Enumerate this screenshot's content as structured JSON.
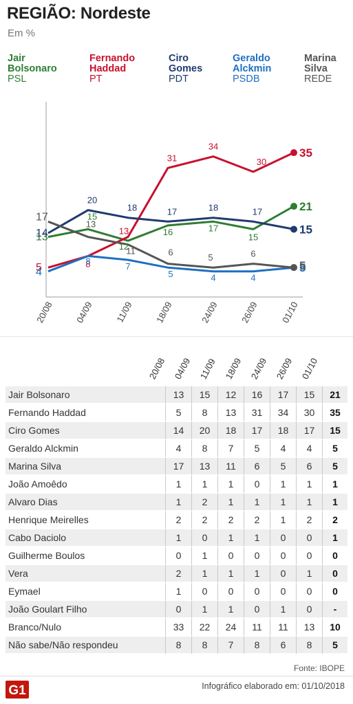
{
  "header": {
    "title": "REGIÃO: Nordeste",
    "subtitle": "Em %"
  },
  "legend": [
    {
      "name": "Jair Bolsonaro",
      "party": "PSL",
      "color": "#2e7d32"
    },
    {
      "name": "Fernando Haddad",
      "party": "PT",
      "color": "#c8102e"
    },
    {
      "name": "Ciro Gomes",
      "party": "PDT",
      "color": "#1f3a6e"
    },
    {
      "name": "Geraldo Alckmin",
      "party": "PSDB",
      "color": "#1f6fc0"
    },
    {
      "name": "Marina Silva",
      "party": "REDE",
      "color": "#555555"
    }
  ],
  "chart_data": {
    "type": "line",
    "x": [
      "20/08",
      "04/09",
      "11/09",
      "18/09",
      "24/09",
      "26/09",
      "01/10"
    ],
    "ylim": [
      0,
      45
    ],
    "grid": false,
    "series": [
      {
        "name": "Jair Bolsonaro",
        "color": "#2e7d32",
        "values": [
          13,
          15,
          12,
          16,
          17,
          15,
          21
        ]
      },
      {
        "name": "Fernando Haddad",
        "color": "#c8102e",
        "values": [
          5,
          8,
          13,
          31,
          34,
          30,
          35
        ]
      },
      {
        "name": "Ciro Gomes",
        "color": "#1f3a6e",
        "values": [
          14,
          20,
          18,
          17,
          18,
          17,
          15
        ]
      },
      {
        "name": "Geraldo Alckmin",
        "color": "#1f6fc0",
        "values": [
          4,
          8,
          7,
          5,
          4,
          4,
          5
        ]
      },
      {
        "name": "Marina Silva",
        "color": "#555555",
        "values": [
          17,
          13,
          11,
          6,
          5,
          6,
          5
        ]
      }
    ]
  },
  "table": {
    "columns": [
      "20/08",
      "04/09",
      "11/09",
      "18/09",
      "24/09",
      "26/09",
      "01/10"
    ],
    "rows": [
      {
        "name": "Jair Bolsonaro",
        "values": [
          "13",
          "15",
          "12",
          "16",
          "17",
          "15",
          "21"
        ]
      },
      {
        "name": "Fernando Haddad",
        "values": [
          "5",
          "8",
          "13",
          "31",
          "34",
          "30",
          "35"
        ]
      },
      {
        "name": "Ciro Gomes",
        "values": [
          "14",
          "20",
          "18",
          "17",
          "18",
          "17",
          "15"
        ]
      },
      {
        "name": "Geraldo Alckmin",
        "values": [
          "4",
          "8",
          "7",
          "5",
          "4",
          "4",
          "5"
        ]
      },
      {
        "name": "Marina Silva",
        "values": [
          "17",
          "13",
          "11",
          "6",
          "5",
          "6",
          "5"
        ]
      },
      {
        "name": "João Amoêdo",
        "values": [
          "1",
          "1",
          "1",
          "0",
          "1",
          "1",
          "1"
        ]
      },
      {
        "name": "Alvaro Dias",
        "values": [
          "1",
          "2",
          "1",
          "1",
          "1",
          "1",
          "1"
        ]
      },
      {
        "name": "Henrique Meirelles",
        "values": [
          "2",
          "2",
          "2",
          "2",
          "1",
          "2",
          "2"
        ]
      },
      {
        "name": "Cabo Daciolo",
        "values": [
          "1",
          "0",
          "1",
          "1",
          "0",
          "0",
          "1"
        ]
      },
      {
        "name": "Guilherme Boulos",
        "values": [
          "0",
          "1",
          "0",
          "0",
          "0",
          "0",
          "0"
        ]
      },
      {
        "name": "Vera",
        "values": [
          "2",
          "1",
          "1",
          "1",
          "0",
          "1",
          "0"
        ]
      },
      {
        "name": "Eymael",
        "values": [
          "1",
          "0",
          "0",
          "0",
          "0",
          "0",
          "0"
        ]
      },
      {
        "name": "João Goulart Filho",
        "values": [
          "0",
          "1",
          "1",
          "0",
          "1",
          "0",
          "-"
        ]
      },
      {
        "name": "Branco/Nulo",
        "values": [
          "33",
          "22",
          "24",
          "11",
          "11",
          "13",
          "10"
        ]
      },
      {
        "name": "Não sabe/Não respondeu",
        "values": [
          "8",
          "8",
          "7",
          "8",
          "6",
          "8",
          "5"
        ]
      }
    ]
  },
  "footer": {
    "source": "Fonte: IBOPE",
    "credit": "Infográfico elaborado em: 01/10/2018",
    "logo_text": "G1",
    "logo_color": "#c4170c"
  }
}
